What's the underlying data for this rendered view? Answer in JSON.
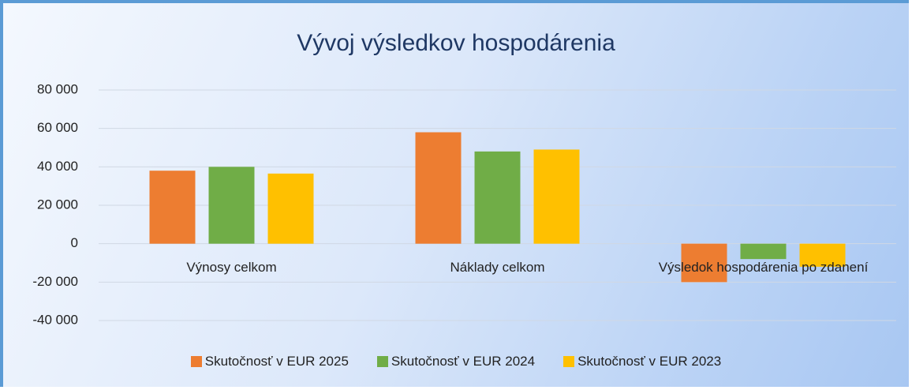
{
  "chart_data": {
    "type": "bar",
    "title": "Vývoj výsledkov hospodárenia",
    "categories": [
      "Výnosy celkom",
      "Náklady celkom",
      "Výsledok hospodárenia po zdanení"
    ],
    "series": [
      {
        "name": "Skutočnosť v EUR 2025",
        "color": "#ed7d31",
        "values": [
          38000,
          58000,
          -20000
        ]
      },
      {
        "name": "Skutočnosť v EUR 2024",
        "color": "#70ad47",
        "values": [
          40000,
          48000,
          -8000
        ]
      },
      {
        "name": "Skutočnosť v EUR 2023",
        "color": "#ffc000",
        "values": [
          36500,
          49000,
          -12000
        ]
      }
    ],
    "ylim": [
      -40000,
      80000
    ],
    "yticks": [
      {
        "value": -40000,
        "label": "-40 000"
      },
      {
        "value": -20000,
        "label": "-20 000"
      },
      0,
      {
        "value": 20000,
        "label": "20 000"
      },
      {
        "value": 40000,
        "label": "40 000"
      },
      {
        "value": 60000,
        "label": "60 000"
      },
      {
        "value": 80000,
        "label": "80 000"
      }
    ],
    "grid": true,
    "legend": "bottom"
  }
}
